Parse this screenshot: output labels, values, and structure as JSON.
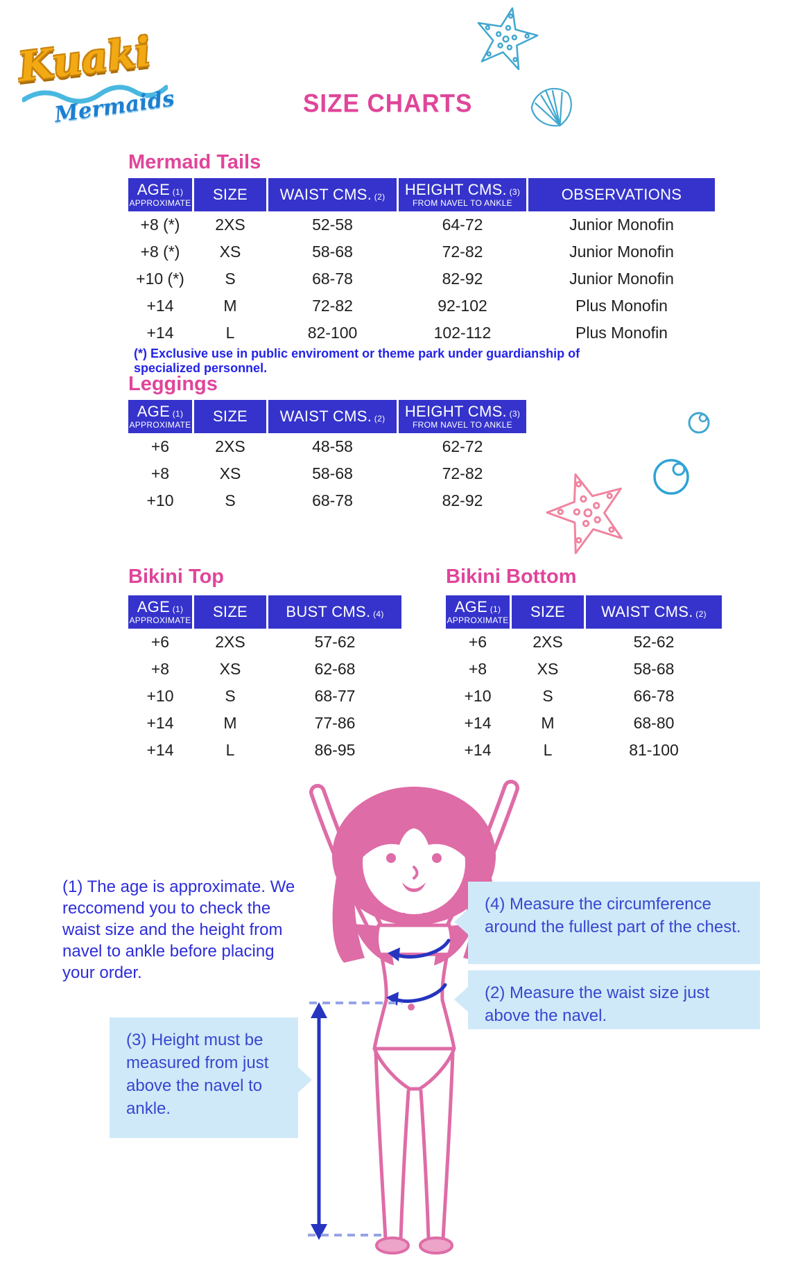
{
  "page": {
    "title": "SIZE CHARTS"
  },
  "logo": {
    "brand": "Kuaki",
    "sub": "Mermaids"
  },
  "colors": {
    "header_blue": "#3533cb",
    "heading_pink": "#e0459a",
    "footnote_blue": "#2323e8",
    "note_blue": "#2d2dd9",
    "callout_bg": "#cfe9f8",
    "callout_text": "#3747cf",
    "figure_pink": "#de6ca7",
    "arrow_blue": "#2535c0",
    "decor_cyan": "#41a7cf",
    "decor_pink": "#f0849f"
  },
  "decorations": [
    "starfish-icon",
    "shell-icon",
    "bubble-icon",
    "bubble-icon",
    "pink-starfish-icon",
    "measuring-girl-illustration"
  ],
  "tables": {
    "mermaid_tails": {
      "heading": "Mermaid Tails",
      "columns": [
        {
          "label": "AGE",
          "note": "(1)",
          "sub": "APPROXIMATE"
        },
        {
          "label": "SIZE",
          "note": "",
          "sub": ""
        },
        {
          "label": "WAIST CMS.",
          "note": "(2)",
          "sub": ""
        },
        {
          "label": "HEIGHT CMS.",
          "note": "(3)",
          "sub": "FROM NAVEL TO ANKLE"
        },
        {
          "label": "OBSERVATIONS",
          "note": "",
          "sub": ""
        }
      ],
      "rows": [
        [
          "+8 (*)",
          "2XS",
          "52-58",
          "64-72",
          "Junior Monofin"
        ],
        [
          "+8  (*)",
          "XS",
          "58-68",
          "72-82",
          "Junior Monofin"
        ],
        [
          "+10 (*)",
          "S",
          "68-78",
          "82-92",
          "Junior Monofin"
        ],
        [
          "+14",
          "M",
          "72-82",
          "92-102",
          "Plus Monofin"
        ],
        [
          "+14",
          "L",
          "82-100",
          "102-112",
          "Plus Monofin"
        ]
      ],
      "footnote": "(*) Exclusive use in public enviroment or theme park under guardianship of specialized personnel."
    },
    "leggings": {
      "heading": "Leggings",
      "columns": [
        {
          "label": "AGE",
          "note": "(1)",
          "sub": "APPROXIMATE"
        },
        {
          "label": "SIZE",
          "note": "",
          "sub": ""
        },
        {
          "label": "WAIST CMS.",
          "note": "(2)",
          "sub": ""
        },
        {
          "label": "HEIGHT CMS.",
          "note": "(3)",
          "sub": "FROM NAVEL TO ANKLE"
        }
      ],
      "rows": [
        [
          "+6",
          "2XS",
          "48-58",
          "62-72"
        ],
        [
          "+8",
          "XS",
          "58-68",
          "72-82"
        ],
        [
          "+10",
          "S",
          "68-78",
          "82-92"
        ]
      ]
    },
    "bikini_top": {
      "heading": "Bikini Top",
      "columns": [
        {
          "label": "AGE",
          "note": "(1)",
          "sub": "APPROXIMATE"
        },
        {
          "label": "SIZE",
          "note": "",
          "sub": ""
        },
        {
          "label": "BUST CMS.",
          "note": "(4)",
          "sub": ""
        }
      ],
      "rows": [
        [
          "+6",
          "2XS",
          "57-62"
        ],
        [
          "+8",
          "XS",
          "62-68"
        ],
        [
          "+10",
          "S",
          "68-77"
        ],
        [
          "+14",
          "M",
          "77-86"
        ],
        [
          "+14",
          "L",
          "86-95"
        ]
      ]
    },
    "bikini_bottom": {
      "heading": "Bikini Bottom",
      "columns": [
        {
          "label": "AGE",
          "note": "(1)",
          "sub": "APPROXIMATE"
        },
        {
          "label": "SIZE",
          "note": "",
          "sub": ""
        },
        {
          "label": "WAIST CMS.",
          "note": "(2)",
          "sub": ""
        }
      ],
      "rows": [
        [
          "+6",
          "2XS",
          "52-62"
        ],
        [
          "+8",
          "XS",
          "58-68"
        ],
        [
          "+10",
          "S",
          "66-78"
        ],
        [
          "+14",
          "M",
          "68-80"
        ],
        [
          "+14",
          "L",
          "81-100"
        ]
      ]
    }
  },
  "notes": {
    "note1": "(1) The age is approximate. We reccomend you to check the waist size and the height from navel to ankle before placing your order.",
    "note4": "(4) Measure the circumference around the fullest part of the chest.",
    "note2": "(2) Measure the waist size just above the navel.",
    "note3": "(3) Height must be measured from just above the navel to ankle."
  }
}
